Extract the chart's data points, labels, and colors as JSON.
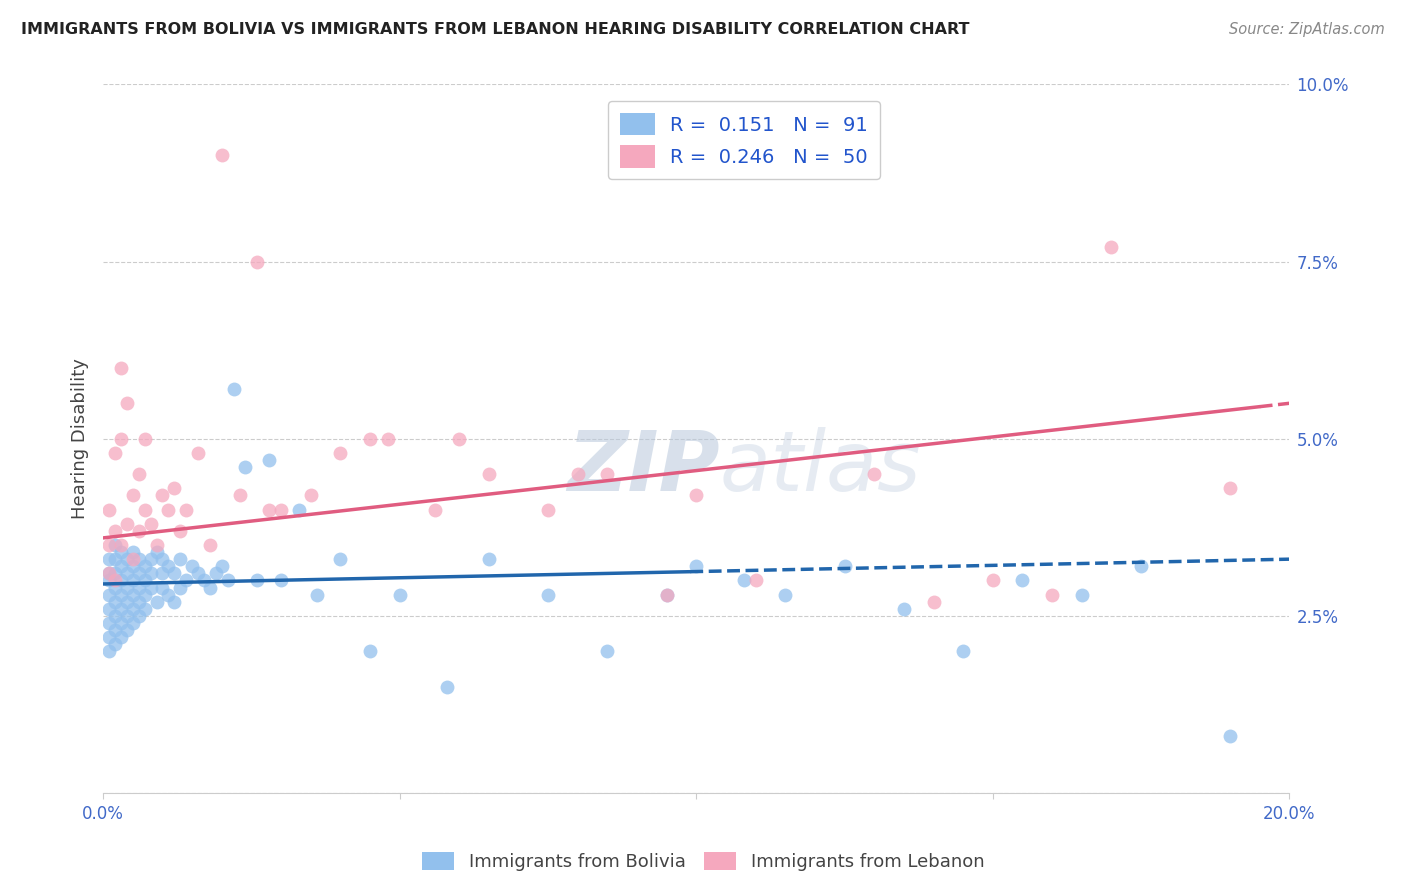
{
  "title": "IMMIGRANTS FROM BOLIVIA VS IMMIGRANTS FROM LEBANON HEARING DISABILITY CORRELATION CHART",
  "source": "Source: ZipAtlas.com",
  "ylabel": "Hearing Disability",
  "xlim": [
    0.0,
    0.2
  ],
  "ylim": [
    0.0,
    0.1
  ],
  "xticks": [
    0.0,
    0.05,
    0.1,
    0.15,
    0.2
  ],
  "yticks": [
    0.0,
    0.025,
    0.05,
    0.075,
    0.1
  ],
  "bolivia_color": "#92c0ed",
  "lebanon_color": "#f5a8be",
  "bolivia_line_color": "#2166ac",
  "lebanon_line_color": "#e05c80",
  "bolivia_R": 0.151,
  "bolivia_N": 91,
  "lebanon_R": 0.246,
  "lebanon_N": 50,
  "watermark": "ZIPatlas",
  "legend_label_bolivia": "Immigrants from Bolivia",
  "legend_label_lebanon": "Immigrants from Lebanon",
  "bolivia_x": [
    0.001,
    0.001,
    0.001,
    0.001,
    0.001,
    0.001,
    0.001,
    0.001,
    0.002,
    0.002,
    0.002,
    0.002,
    0.002,
    0.002,
    0.002,
    0.002,
    0.003,
    0.003,
    0.003,
    0.003,
    0.003,
    0.003,
    0.003,
    0.004,
    0.004,
    0.004,
    0.004,
    0.004,
    0.004,
    0.005,
    0.005,
    0.005,
    0.005,
    0.005,
    0.005,
    0.006,
    0.006,
    0.006,
    0.006,
    0.006,
    0.007,
    0.007,
    0.007,
    0.007,
    0.008,
    0.008,
    0.008,
    0.009,
    0.009,
    0.01,
    0.01,
    0.01,
    0.011,
    0.011,
    0.012,
    0.012,
    0.013,
    0.013,
    0.014,
    0.015,
    0.016,
    0.017,
    0.018,
    0.019,
    0.02,
    0.021,
    0.022,
    0.024,
    0.026,
    0.028,
    0.03,
    0.033,
    0.036,
    0.04,
    0.045,
    0.05,
    0.058,
    0.065,
    0.075,
    0.085,
    0.095,
    0.1,
    0.108,
    0.115,
    0.125,
    0.135,
    0.145,
    0.155,
    0.165,
    0.175,
    0.19
  ],
  "bolivia_y": [
    0.028,
    0.03,
    0.031,
    0.026,
    0.024,
    0.022,
    0.033,
    0.02,
    0.029,
    0.031,
    0.027,
    0.025,
    0.033,
    0.023,
    0.035,
    0.021,
    0.03,
    0.028,
    0.032,
    0.026,
    0.024,
    0.034,
    0.022,
    0.031,
    0.029,
    0.027,
    0.033,
    0.025,
    0.023,
    0.03,
    0.028,
    0.032,
    0.026,
    0.024,
    0.034,
    0.031,
    0.029,
    0.027,
    0.033,
    0.025,
    0.032,
    0.03,
    0.028,
    0.026,
    0.033,
    0.031,
    0.029,
    0.034,
    0.027,
    0.033,
    0.031,
    0.029,
    0.032,
    0.028,
    0.031,
    0.027,
    0.033,
    0.029,
    0.03,
    0.032,
    0.031,
    0.03,
    0.029,
    0.031,
    0.032,
    0.03,
    0.057,
    0.046,
    0.03,
    0.047,
    0.03,
    0.04,
    0.028,
    0.033,
    0.02,
    0.028,
    0.015,
    0.033,
    0.028,
    0.02,
    0.028,
    0.032,
    0.03,
    0.028,
    0.032,
    0.026,
    0.02,
    0.03,
    0.028,
    0.032,
    0.008
  ],
  "lebanon_x": [
    0.001,
    0.001,
    0.001,
    0.002,
    0.002,
    0.002,
    0.003,
    0.003,
    0.003,
    0.004,
    0.004,
    0.005,
    0.005,
    0.006,
    0.006,
    0.007,
    0.007,
    0.008,
    0.009,
    0.01,
    0.011,
    0.012,
    0.013,
    0.014,
    0.016,
    0.018,
    0.02,
    0.023,
    0.026,
    0.03,
    0.035,
    0.04,
    0.048,
    0.056,
    0.065,
    0.075,
    0.085,
    0.095,
    0.11,
    0.13,
    0.15,
    0.17,
    0.19,
    0.028,
    0.045,
    0.06,
    0.08,
    0.1,
    0.14,
    0.16
  ],
  "lebanon_y": [
    0.031,
    0.035,
    0.04,
    0.03,
    0.037,
    0.048,
    0.035,
    0.05,
    0.06,
    0.038,
    0.055,
    0.042,
    0.033,
    0.045,
    0.037,
    0.05,
    0.04,
    0.038,
    0.035,
    0.042,
    0.04,
    0.043,
    0.037,
    0.04,
    0.048,
    0.035,
    0.09,
    0.042,
    0.075,
    0.04,
    0.042,
    0.048,
    0.05,
    0.04,
    0.045,
    0.04,
    0.045,
    0.028,
    0.03,
    0.045,
    0.03,
    0.077,
    0.043,
    0.04,
    0.05,
    0.05,
    0.045,
    0.042,
    0.027,
    0.028
  ],
  "bolivia_line_x0": 0.0,
  "bolivia_line_x_solid_end": 0.099,
  "bolivia_line_xend": 0.2,
  "bolivia_line_y0": 0.0295,
  "bolivia_line_yend": 0.033,
  "lebanon_line_x0": 0.0,
  "lebanon_line_xend": 0.2,
  "lebanon_line_y0": 0.036,
  "lebanon_line_yend": 0.055,
  "lebanon_line_x_solid_end": 0.195
}
